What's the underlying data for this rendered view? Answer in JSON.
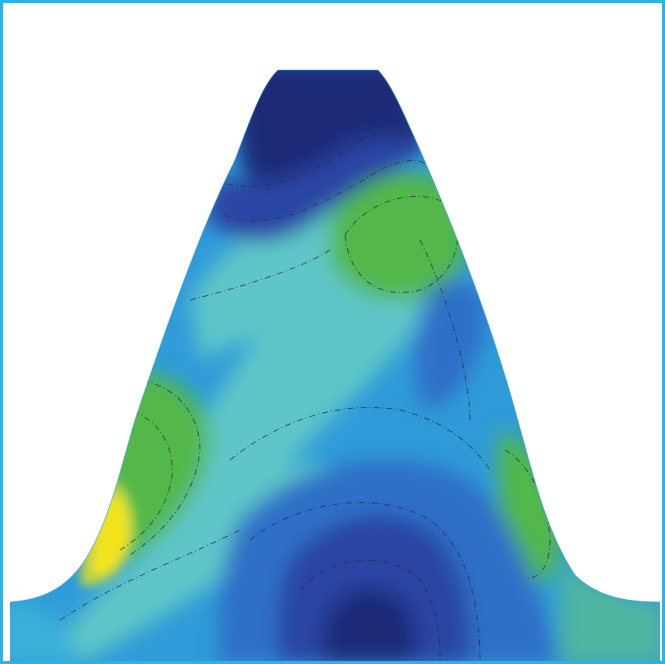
{
  "colors": {
    "frame_border": "#2bb3e6",
    "background": "#ffffff",
    "deep_navy": "#1f2a78",
    "dark_blue": "#2c45a4",
    "royal_blue": "#2f6fc7",
    "sky_blue": "#2f9bd8",
    "cyan": "#3ab0d8",
    "aqua": "#5fc6c8",
    "teal_green": "#4fb6a0",
    "green": "#52b848",
    "yellow_green": "#b9d24a",
    "yellow": "#f3e41f",
    "contour_line": "#2a2a3a"
  },
  "image": {
    "subject": "gear-tooth-stress-contour",
    "icon": "contour-plot"
  }
}
